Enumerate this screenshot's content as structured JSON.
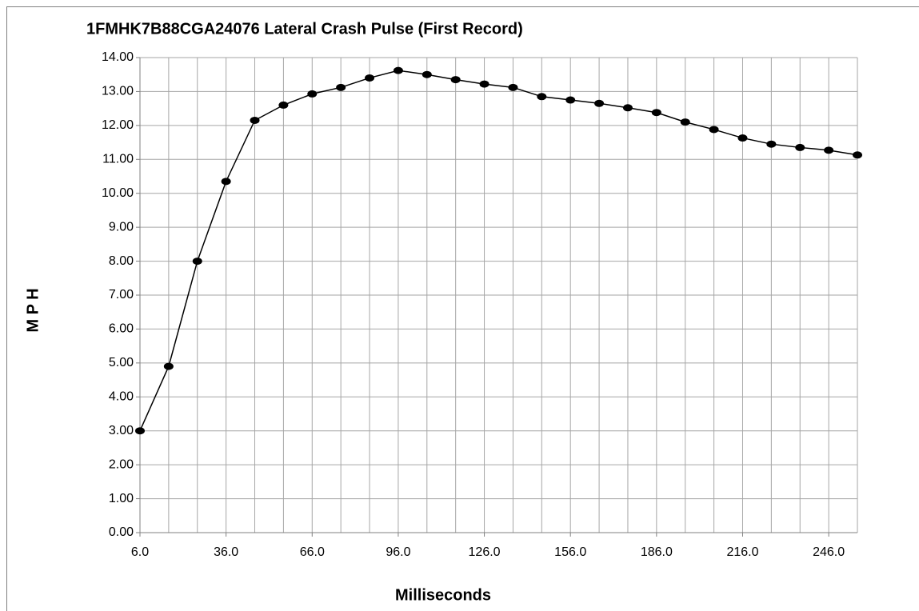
{
  "chart_data": {
    "type": "line",
    "title": "1FMHK7B88CGA24076  Lateral Crash Pulse (First Record)",
    "x_label": "Milliseconds",
    "y_label": "M P H",
    "x": [
      6,
      16,
      26,
      36,
      46,
      56,
      66,
      76,
      86,
      96,
      106,
      116,
      126,
      136,
      146,
      156,
      166,
      176,
      186,
      196,
      206,
      216,
      226,
      236,
      246,
      256
    ],
    "series": [
      {
        "name": "Lateral",
        "color": "#000000",
        "values": [
          3.0,
          4.9,
          8.0,
          10.35,
          12.15,
          12.6,
          12.93,
          13.12,
          13.4,
          13.62,
          13.5,
          13.35,
          13.22,
          13.12,
          12.85,
          12.75,
          12.65,
          12.52,
          12.38,
          12.1,
          11.88,
          11.63,
          11.45,
          11.35,
          11.27,
          11.13
        ]
      }
    ],
    "xlim": [
      6,
      256
    ],
    "ylim": [
      0,
      14
    ],
    "xticks": [
      {
        "value": 6,
        "label": "6.0"
      },
      {
        "value": 36,
        "label": "36.0"
      },
      {
        "value": 66,
        "label": "66.0"
      },
      {
        "value": 96,
        "label": "96.0"
      },
      {
        "value": 126,
        "label": "126.0"
      },
      {
        "value": 156,
        "label": "156.0"
      },
      {
        "value": 186,
        "label": "186.0"
      },
      {
        "value": 216,
        "label": "216.0"
      },
      {
        "value": 246,
        "label": "246.0"
      }
    ],
    "xgrid": [
      6,
      16,
      26,
      36,
      46,
      56,
      66,
      76,
      86,
      96,
      106,
      116,
      126,
      136,
      146,
      156,
      166,
      176,
      186,
      196,
      206,
      216,
      226,
      236,
      246,
      256
    ],
    "yticks": [
      {
        "value": 0,
        "label": "0.00"
      },
      {
        "value": 1,
        "label": "1.00"
      },
      {
        "value": 2,
        "label": "2.00"
      },
      {
        "value": 3,
        "label": "3.00"
      },
      {
        "value": 4,
        "label": "4.00"
      },
      {
        "value": 5,
        "label": "5.00"
      },
      {
        "value": 6,
        "label": "6.00"
      },
      {
        "value": 7,
        "label": "7.00"
      },
      {
        "value": 8,
        "label": "8.00"
      },
      {
        "value": 9,
        "label": "9.00"
      },
      {
        "value": 10,
        "label": "10.00"
      },
      {
        "value": 11,
        "label": "11.00"
      },
      {
        "value": 12,
        "label": "12.00"
      },
      {
        "value": 13,
        "label": "13.00"
      },
      {
        "value": 14,
        "label": "14.00"
      }
    ],
    "grid": true
  }
}
